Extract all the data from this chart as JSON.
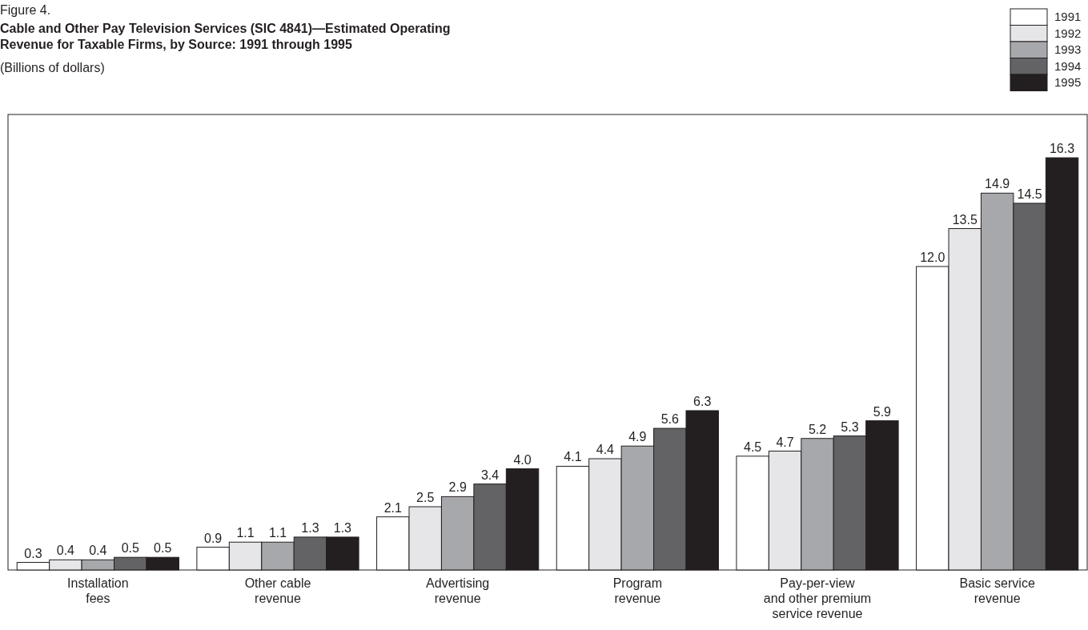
{
  "chart_data": {
    "type": "bar",
    "title": "Cable and Other Pay Television Services (SIC 4841)—Estimated Operating\nRevenue for Taxable Firms, by Source:  1991 through 1995",
    "subtitle": "(Billions of dollars)",
    "annotations": [
      "Figure 4."
    ],
    "categories": [
      "Installation\nfees",
      "Other cable\nrevenue",
      "Advertising\nrevenue",
      "Program\nrevenue",
      "Pay-per-view\nand other premium\nservice revenue",
      "Basic service\nrevenue"
    ],
    "series": [
      {
        "name": "1991",
        "color": "#ffffff",
        "values": [
          0.3,
          0.9,
          2.1,
          4.1,
          4.5,
          12.0
        ],
        "value_labels": [
          "0.3",
          "0.9",
          "2.1",
          "4.1",
          "4.5",
          "12.0"
        ]
      },
      {
        "name": "1992",
        "color": "#e6e6e8",
        "values": [
          0.4,
          1.1,
          2.5,
          4.4,
          4.7,
          13.5
        ],
        "value_labels": [
          "0.4",
          "1.1",
          "2.5",
          "4.4",
          "4.7",
          "13.5"
        ]
      },
      {
        "name": "1993",
        "color": "#a7a8ab",
        "values": [
          0.4,
          1.1,
          2.9,
          4.9,
          5.2,
          14.9
        ],
        "value_labels": [
          "0.4",
          "1.1",
          "2.9",
          "4.9",
          "5.2",
          "14.9"
        ]
      },
      {
        "name": "1994",
        "color": "#636366",
        "values": [
          0.5,
          1.3,
          3.4,
          5.6,
          5.3,
          14.5
        ],
        "value_labels": [
          "0.5",
          "1.3",
          "3.4",
          "5.6",
          "5.3",
          "14.5"
        ]
      },
      {
        "name": "1995",
        "color": "#231f20",
        "values": [
          0.5,
          1.3,
          4.0,
          6.3,
          5.9,
          16.3
        ],
        "value_labels": [
          "0.5",
          "1.3",
          "4.0",
          "6.3",
          "5.9",
          "16.3"
        ]
      }
    ],
    "legend": "top right"
  }
}
